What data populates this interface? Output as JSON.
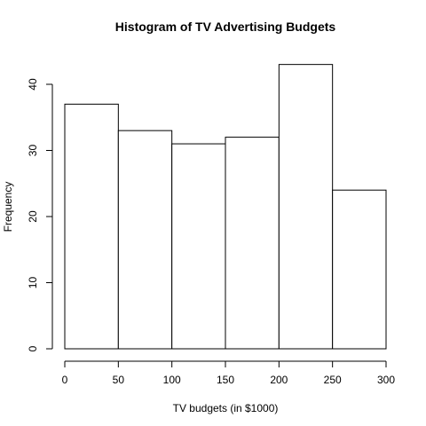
{
  "chart_data": {
    "type": "bar",
    "title": "Histogram of TV Advertising Budgets",
    "xlabel": "TV budgets (in $1000)",
    "ylabel": "Frequency",
    "bins": [
      {
        "start": 0,
        "end": 50,
        "count": 37
      },
      {
        "start": 50,
        "end": 100,
        "count": 33
      },
      {
        "start": 100,
        "end": 150,
        "count": 31
      },
      {
        "start": 150,
        "end": 200,
        "count": 32
      },
      {
        "start": 200,
        "end": 250,
        "count": 43
      },
      {
        "start": 250,
        "end": 300,
        "count": 24
      }
    ],
    "xticks": [
      0,
      50,
      100,
      150,
      200,
      250,
      300
    ],
    "yticks": [
      0,
      10,
      20,
      30,
      40
    ],
    "xlim": [
      0,
      300
    ],
    "ylim": [
      0,
      43
    ],
    "grid": false,
    "colors": {
      "bar_fill": "#ffffff",
      "bar_stroke": "#000000"
    }
  }
}
